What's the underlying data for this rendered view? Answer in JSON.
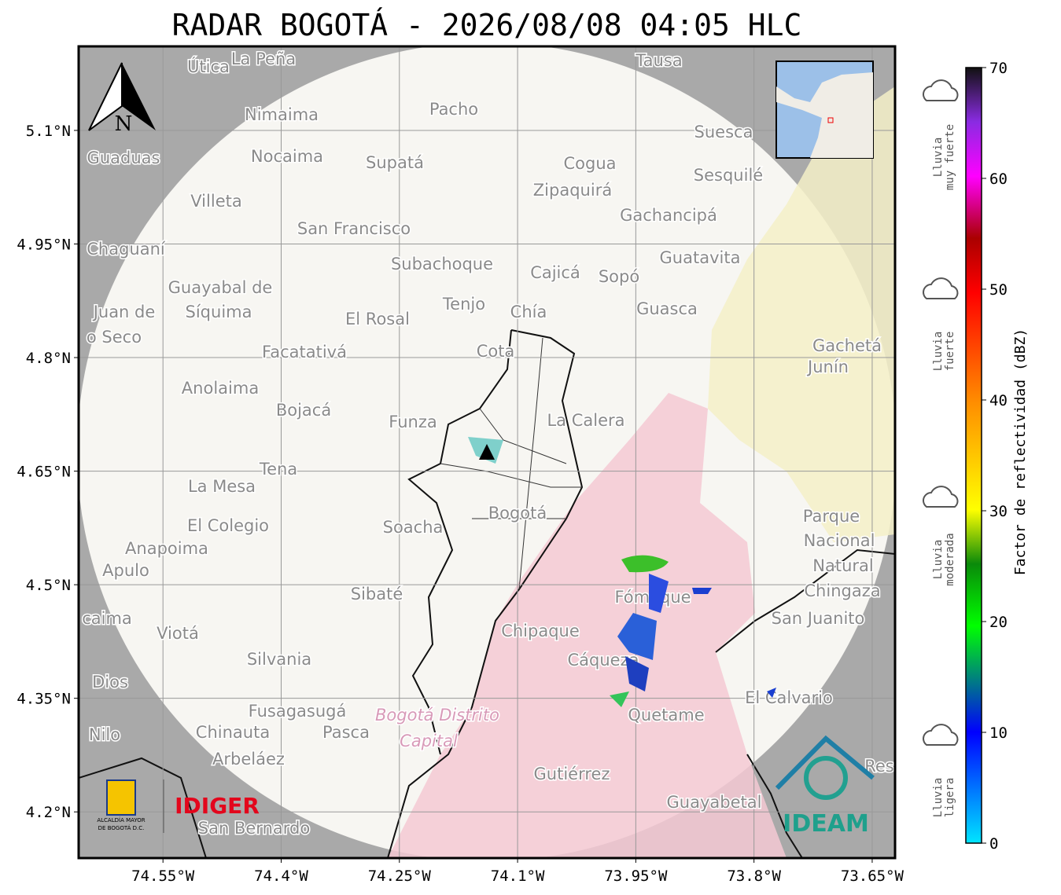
{
  "map": {
    "title": "RADAR BOGOTÁ - 2026/08/08 04:05 HLC",
    "xlim": [
      -74.657,
      -73.621
    ],
    "ylim": [
      4.139,
      5.211
    ],
    "xticks": [
      {
        "value": -74.55,
        "label": "74.55°W"
      },
      {
        "value": -74.4,
        "label": "74.4°W"
      },
      {
        "value": -74.25,
        "label": "74.25°W"
      },
      {
        "value": -74.1,
        "label": "74.1°W"
      },
      {
        "value": -73.95,
        "label": "73.95°W"
      },
      {
        "value": -73.8,
        "label": "73.8°W"
      },
      {
        "value": -73.65,
        "label": "73.65°W"
      }
    ],
    "yticks": [
      {
        "value": 5.1,
        "label": "5.1°N"
      },
      {
        "value": 4.95,
        "label": "4.95°N"
      },
      {
        "value": 4.8,
        "label": "4.8°N"
      },
      {
        "value": 4.65,
        "label": "4.65°N"
      },
      {
        "value": 4.5,
        "label": "4.5°N"
      },
      {
        "value": 4.35,
        "label": "4.35°N"
      },
      {
        "value": 4.2,
        "label": "4.2°N"
      }
    ],
    "north": "N",
    "places": [
      "Útica",
      "La Peña",
      "Tausa",
      "Pacho",
      "Nimaima",
      "Suesca",
      "Guaduas",
      "Nocaima",
      "Supatá",
      "Cogua",
      "Sesquilé",
      "Zipaquirá",
      "Villeta",
      "Gachancipá",
      "San Francisco",
      "Chaguaní",
      "Guatavita",
      "Subachoque",
      "Cajicá",
      "Sopó",
      "Guayabal de",
      "Síquima",
      "Juan de",
      "o Seco",
      "Tenjo",
      "Chía",
      "Guasca",
      "El Rosal",
      "Gachetá",
      "Junín",
      "Facatativá",
      "Cota",
      "Anolaima",
      "Bojacá",
      "Funza",
      "La Calera",
      "Tena",
      "La Mesa",
      "Parque",
      "Nacional",
      "Natural",
      "Chingaza",
      "Bogotá",
      "El Colegio",
      "Soacha",
      "Anapoima",
      "Apulo",
      "Fómeque",
      "Sibaté",
      "San Juanito",
      "caima",
      "Viotá",
      "Chipaque",
      "Silvania",
      "Cáqueza",
      "Dios",
      "El Calvario",
      "Fusagasugá",
      "Bogotá Distrito",
      "Quetame",
      "Nilo",
      "Chinauta",
      "Pasca",
      "Capital",
      "Arbeláez",
      "Gutiérrez",
      "Res",
      "Guayabetal",
      "San Bernardo"
    ],
    "colorbar": {
      "label": "Factor de reflectividad (dBZ)",
      "lim": [
        0,
        70
      ],
      "ticks": [
        0,
        10,
        20,
        30,
        40,
        50,
        60,
        70
      ]
    },
    "rain_levels": [
      [
        "Lluvia",
        "muy fuerte"
      ],
      [
        "Lluvia",
        "fuerte"
      ],
      [
        "Lluvia",
        "moderada"
      ],
      [
        "Lluvia",
        "ligera"
      ]
    ],
    "logos": {
      "alcaldia": [
        "ALCALDÍA MAYOR",
        "DE BOGOTÁ D.C."
      ],
      "idiger": "IDIGER",
      "ideam": "IDEAM"
    }
  }
}
